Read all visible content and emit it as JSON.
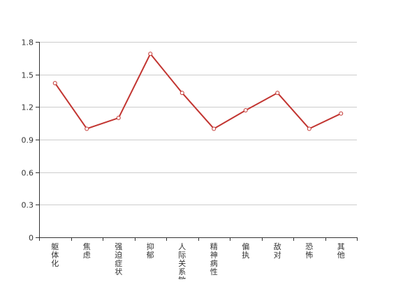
{
  "chart_data": {
    "type": "line",
    "title": "",
    "xlabel": "",
    "ylabel": "",
    "categories": [
      "躯体化",
      "焦虑",
      "强迫症状",
      "抑郁",
      "人际关系敏感",
      "精神病性",
      "偏执",
      "敌对",
      "恐怖",
      "其他"
    ],
    "series": [
      {
        "values": [
          1.42,
          1.0,
          1.1,
          1.69,
          1.33,
          1.0,
          1.17,
          1.33,
          1.0,
          1.14
        ],
        "color": "#c23531"
      }
    ],
    "ylim": [
      0,
      1.8
    ],
    "yticks": [
      "0",
      "0.3",
      "0.6",
      "0.9",
      "1.2",
      "1.5",
      "1.8"
    ],
    "grid": true,
    "legend": "none"
  }
}
